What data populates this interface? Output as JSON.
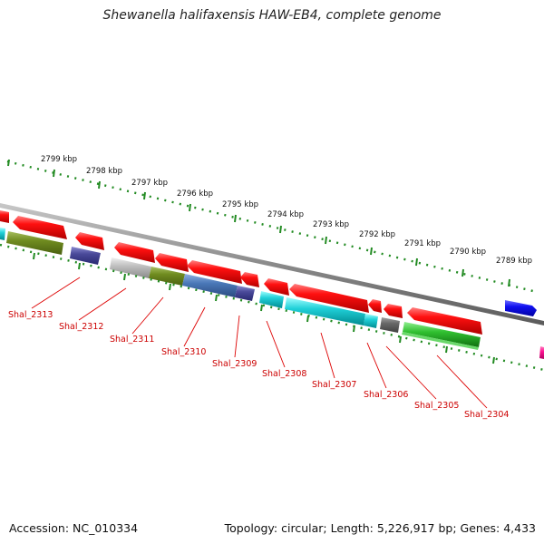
{
  "title": "Shewanella halifaxensis HAW-EB4, complete genome",
  "footer": {
    "accession": "Accession: NC_010334",
    "topology": "Topology: circular; Length: 5,226,917 bp; Genes: 4,433"
  },
  "ruler": {
    "labels": [
      "2799 kbp",
      "2798 kbp",
      "2797 kbp",
      "2796 kbp",
      "2795 kbp",
      "2794 kbp",
      "2793 kbp",
      "2792 kbp",
      "2791 kbp",
      "2790 kbp",
      "2789 kbp"
    ]
  },
  "gene_labels": [
    "Shal_2313",
    "Shal_2312",
    "Shal_2311",
    "Shal_2310",
    "Shal_2309",
    "Shal_2308",
    "Shal_2307",
    "Shal_2306",
    "Shal_2305",
    "Shal_2304"
  ],
  "colors": {
    "backbone": "#888888",
    "forward": "#ff0000",
    "reverse_blue": "#0000ff",
    "tick": "#228b22",
    "label": "#cc0000"
  }
}
